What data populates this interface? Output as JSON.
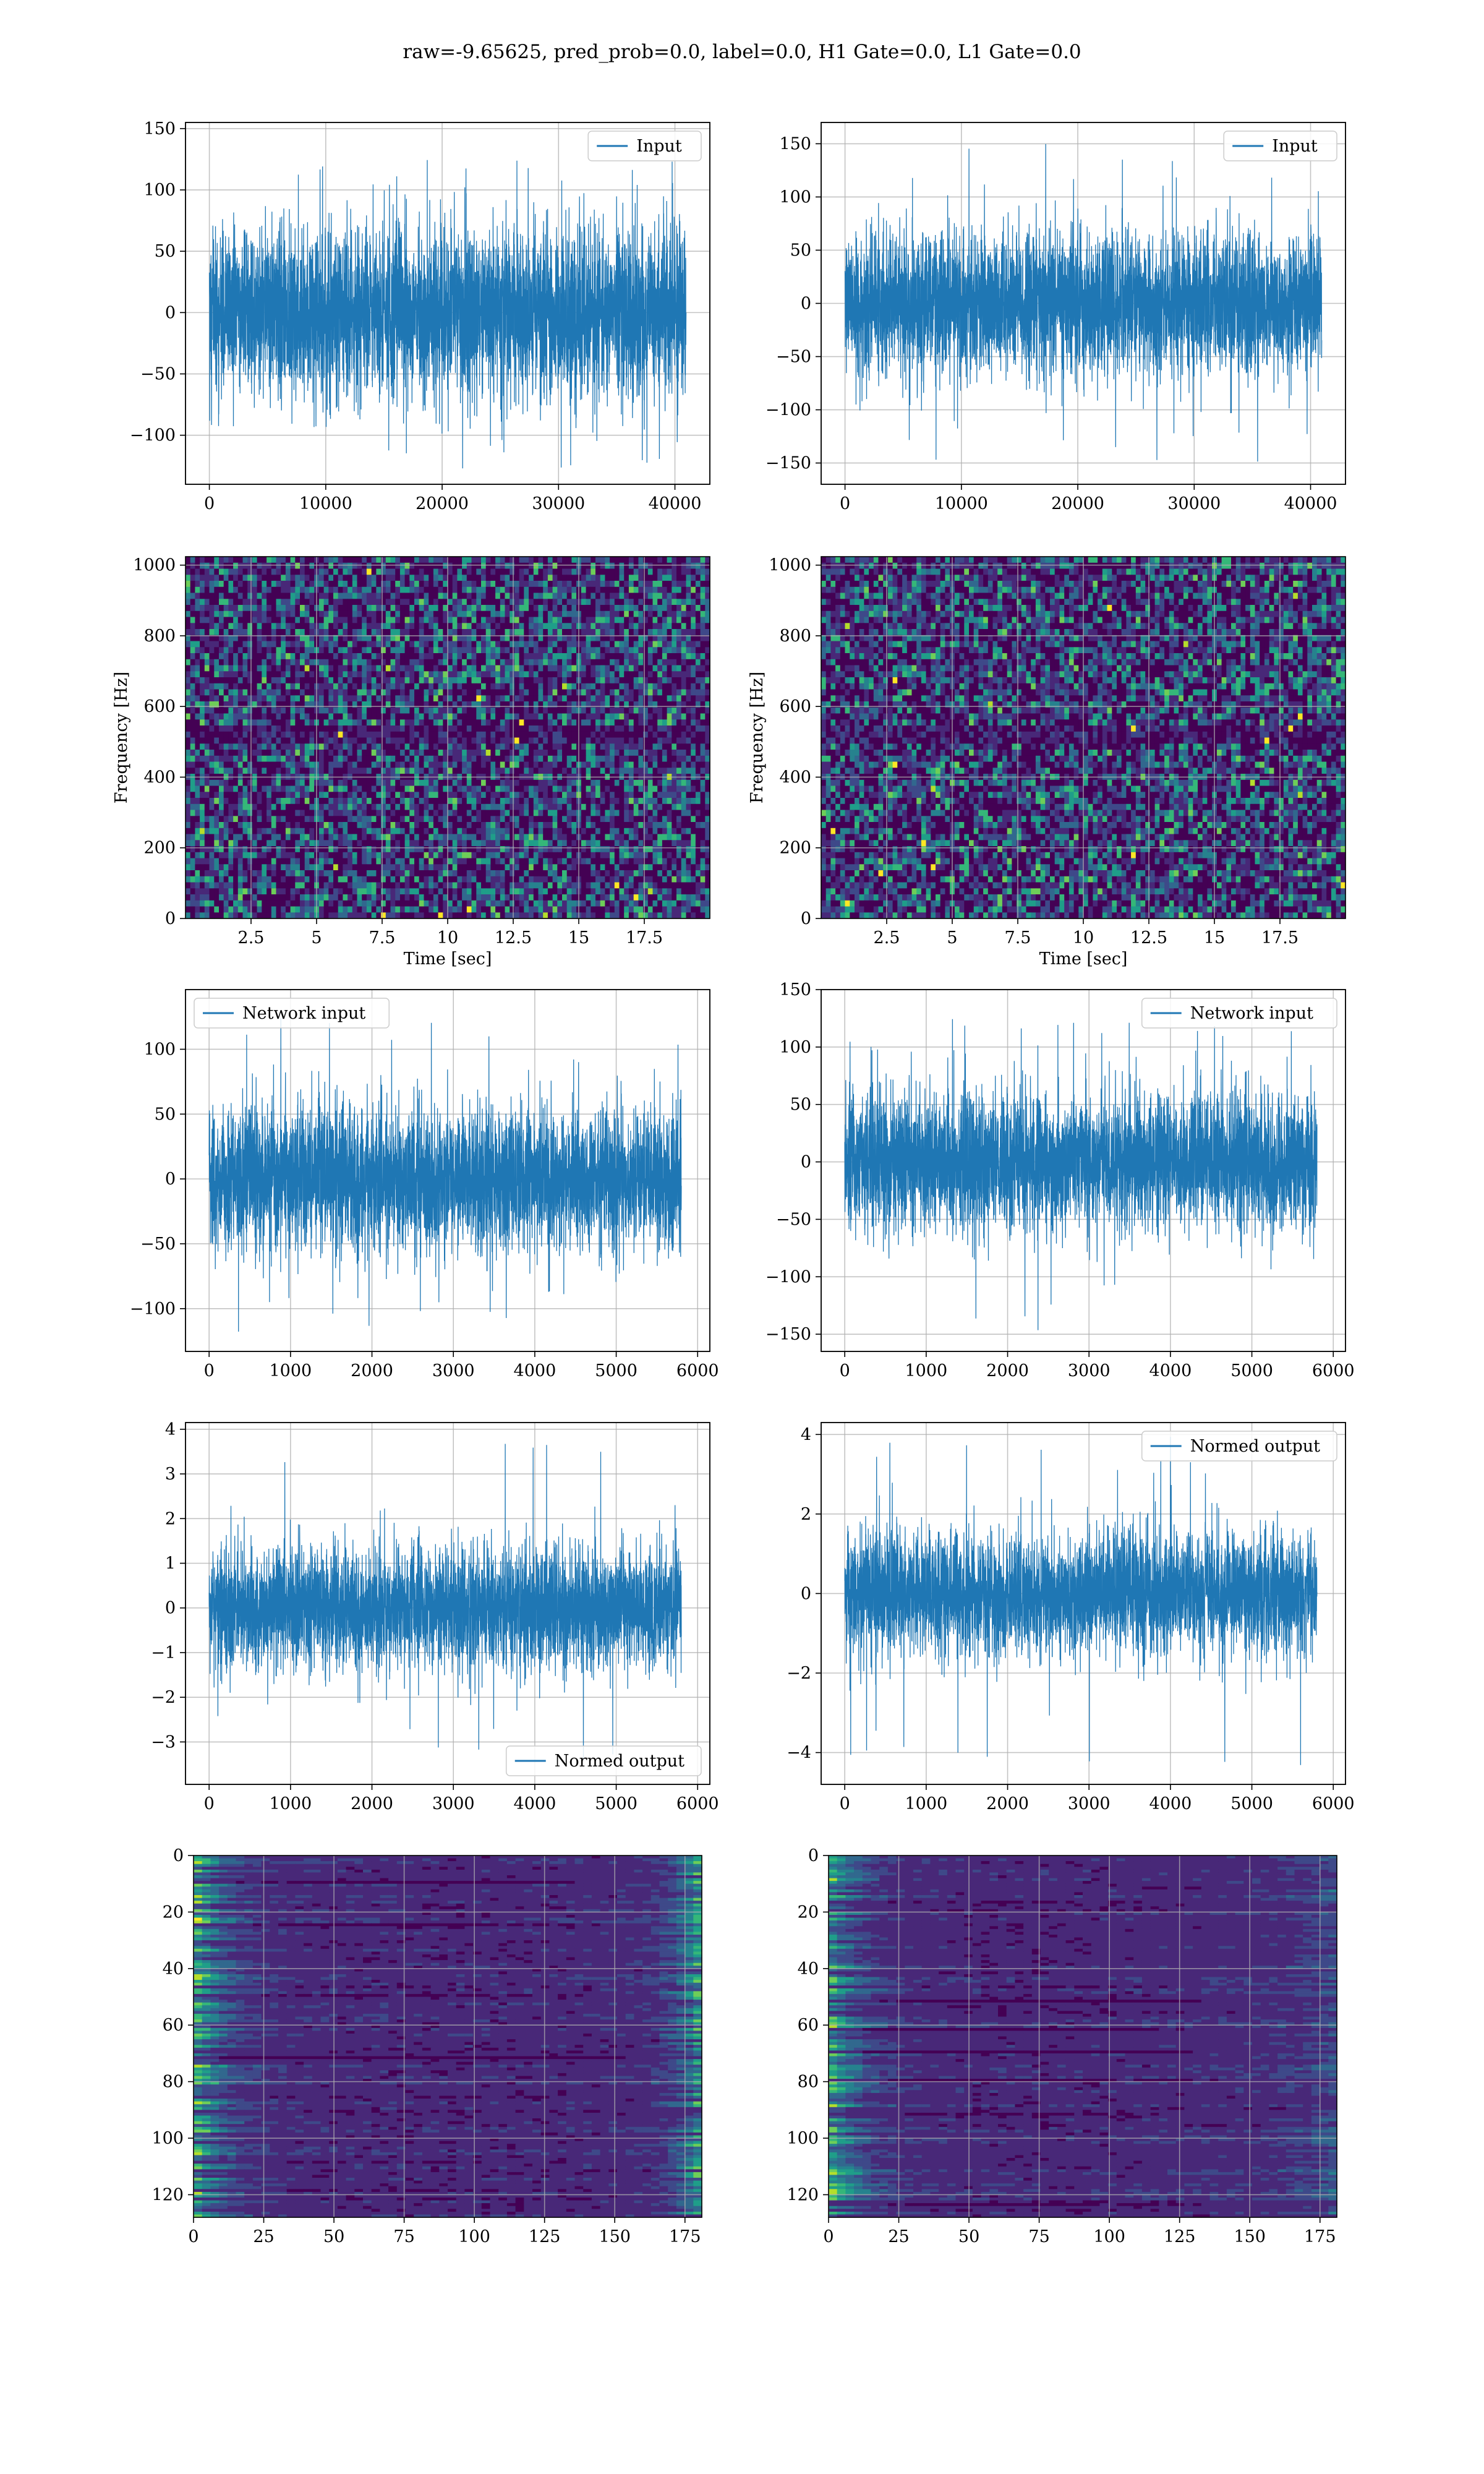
{
  "title": "raw=-9.65625, pred_prob=0.0, label=0.0, H1 Gate=0.0, L1 Gate=0.0",
  "colors": {
    "line": "#1f77b4",
    "grid": "#b0b0b0",
    "viridis": [
      "#440154",
      "#482878",
      "#3e4989",
      "#31688e",
      "#26828e",
      "#1f9e89",
      "#35b779",
      "#6ece58",
      "#b5de2b",
      "#fde725"
    ]
  },
  "chart_data": [
    {
      "id": "input-h1",
      "type": "line",
      "grid": true,
      "xticks": [
        0,
        10000,
        20000,
        30000,
        40000
      ],
      "yticks": [
        -100,
        -50,
        0,
        50,
        100,
        150
      ],
      "xlim": [
        -2050,
        43000
      ],
      "ylim": [
        -140,
        155
      ],
      "series": [
        {
          "name": "Input",
          "n_samples": 40960,
          "envelope_low": -75,
          "envelope_high": 80,
          "peak_min": -130,
          "peak_max": 130
        }
      ],
      "legend": "upper right",
      "xlabel": "",
      "ylabel": ""
    },
    {
      "id": "input-l1",
      "type": "line",
      "grid": true,
      "xticks": [
        0,
        10000,
        20000,
        30000,
        40000
      ],
      "yticks": [
        -150,
        -100,
        -50,
        0,
        50,
        100,
        150
      ],
      "xlim": [
        -2050,
        43000
      ],
      "ylim": [
        -170,
        170
      ],
      "series": [
        {
          "name": "Input",
          "n_samples": 40960,
          "envelope_low": -75,
          "envelope_high": 80,
          "peak_min": -155,
          "peak_max": 152
        }
      ],
      "legend": "upper right",
      "xlabel": "",
      "ylabel": ""
    },
    {
      "id": "spectrogram-h1",
      "type": "heatmap",
      "grid": true,
      "xticks": [
        2.5,
        5.0,
        7.5,
        10.0,
        12.5,
        15.0,
        17.5
      ],
      "yticks": [
        0,
        200,
        400,
        600,
        800,
        1000
      ],
      "xlim": [
        0,
        20
      ],
      "ylim": [
        0,
        1024
      ],
      "xlabel": "Time [sec]",
      "ylabel": "Frequency [Hz]"
    },
    {
      "id": "spectrogram-l1",
      "type": "heatmap",
      "grid": true,
      "xticks": [
        2.5,
        5.0,
        7.5,
        10.0,
        12.5,
        15.0,
        17.5
      ],
      "yticks": [
        0,
        200,
        400,
        600,
        800,
        1000
      ],
      "xlim": [
        0,
        20
      ],
      "ylim": [
        0,
        1024
      ],
      "xlabel": "Time [sec]",
      "ylabel": "Frequency [Hz]"
    },
    {
      "id": "network-input-h1",
      "type": "line",
      "grid": true,
      "xticks": [
        0,
        1000,
        2000,
        3000,
        4000,
        5000,
        6000
      ],
      "yticks": [
        -100,
        -50,
        0,
        50,
        100
      ],
      "xlim": [
        -290,
        6150
      ],
      "ylim": [
        -133,
        146
      ],
      "series": [
        {
          "name": "Network input",
          "n_samples": 5800,
          "envelope_low": -60,
          "envelope_high": 65,
          "peak_min": -120,
          "peak_max": 132
        }
      ],
      "legend": "upper left",
      "xlabel": "",
      "ylabel": ""
    },
    {
      "id": "network-input-l1",
      "type": "line",
      "grid": true,
      "xticks": [
        0,
        1000,
        2000,
        3000,
        4000,
        5000,
        6000
      ],
      "yticks": [
        -150,
        -100,
        -50,
        0,
        50,
        100,
        150
      ],
      "xlim": [
        -290,
        6150
      ],
      "ylim": [
        -165,
        150
      ],
      "series": [
        {
          "name": "Network input",
          "n_samples": 5800,
          "envelope_low": -65,
          "envelope_high": 70,
          "peak_min": -150,
          "peak_max": 125
        }
      ],
      "legend": "upper right",
      "xlabel": "",
      "ylabel": ""
    },
    {
      "id": "normed-output-h1",
      "type": "line",
      "grid": true,
      "xticks": [
        0,
        1000,
        2000,
        3000,
        4000,
        5000,
        6000
      ],
      "yticks": [
        -3,
        -2,
        -1,
        0,
        1,
        2,
        3,
        4
      ],
      "xlim": [
        -290,
        6150
      ],
      "ylim": [
        -3.95,
        4.15
      ],
      "series": [
        {
          "name": "Normed output",
          "n_samples": 5800,
          "envelope_low": -1.5,
          "envelope_high": 1.6,
          "peak_min": -3.5,
          "peak_max": 3.9
        }
      ],
      "legend": "lower right",
      "xlabel": "",
      "ylabel": ""
    },
    {
      "id": "normed-output-l1",
      "type": "line",
      "grid": true,
      "xticks": [
        0,
        1000,
        2000,
        3000,
        4000,
        5000,
        6000
      ],
      "yticks": [
        -4,
        -2,
        0,
        2,
        4
      ],
      "xlim": [
        -290,
        6150
      ],
      "ylim": [
        -4.8,
        4.3
      ],
      "series": [
        {
          "name": "Normed output",
          "n_samples": 5800,
          "envelope_low": -1.7,
          "envelope_high": 1.8,
          "peak_min": -4.4,
          "peak_max": 4.0
        }
      ],
      "legend": "upper right",
      "xlabel": "",
      "ylabel": ""
    },
    {
      "id": "feature-map-h1",
      "type": "heatmap",
      "grid": true,
      "xticks": [
        0,
        25,
        50,
        75,
        100,
        125,
        150,
        175
      ],
      "yticks": [
        0,
        20,
        40,
        60,
        80,
        100,
        120
      ],
      "xlim": [
        0,
        181
      ],
      "ylim": [
        128,
        0
      ],
      "xlabel": "",
      "ylabel": ""
    },
    {
      "id": "feature-map-l1",
      "type": "heatmap",
      "grid": true,
      "xticks": [
        0,
        25,
        50,
        75,
        100,
        125,
        150,
        175
      ],
      "yticks": [
        0,
        20,
        40,
        60,
        80,
        100,
        120
      ],
      "xlim": [
        0,
        181
      ],
      "ylim": [
        128,
        0
      ],
      "xlabel": "",
      "ylabel": ""
    }
  ]
}
